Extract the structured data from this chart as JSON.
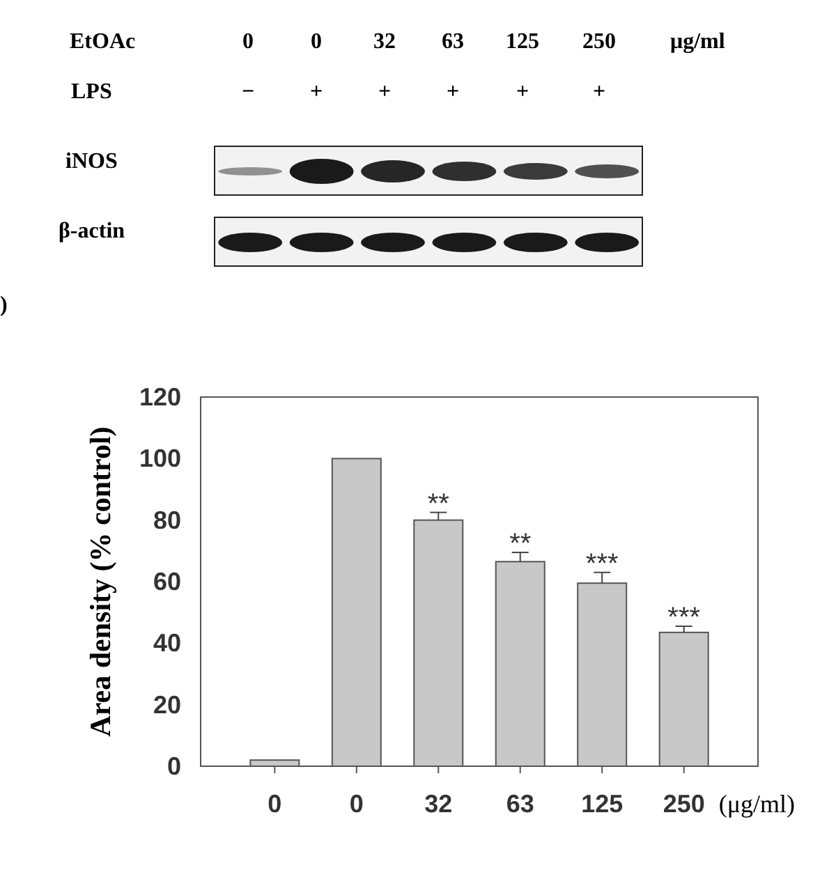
{
  "chart_data": [
    {
      "type": "other",
      "annotations": [
        "EtOAc",
        "0",
        "0",
        "32",
        "63",
        "125",
        "250",
        "μg/ml",
        "LPS",
        "−",
        "+",
        "+",
        "+",
        "+",
        "+",
        "iNOS",
        "β-actin",
        ")"
      ]
    },
    {
      "type": "bar",
      "categories": [
        "0",
        "0",
        "32",
        "63",
        "125",
        "250"
      ],
      "values": [
        2,
        100,
        80,
        66.5,
        59.5,
        43.5
      ],
      "errors": [
        null,
        null,
        [
          80,
          82.5
        ],
        [
          66.5,
          69.5
        ],
        [
          59.5,
          63
        ],
        [
          43.5,
          45.5
        ]
      ],
      "color": "#c8c8c8",
      "ylabel": "Area density (% control)",
      "xlabel": "(μg/ml)",
      "ylim": [
        0,
        120
      ],
      "yticks": [
        0,
        20,
        40,
        60,
        80,
        100,
        120
      ],
      "annotations": [
        "**",
        "**",
        "***",
        "***"
      ]
    }
  ]
}
